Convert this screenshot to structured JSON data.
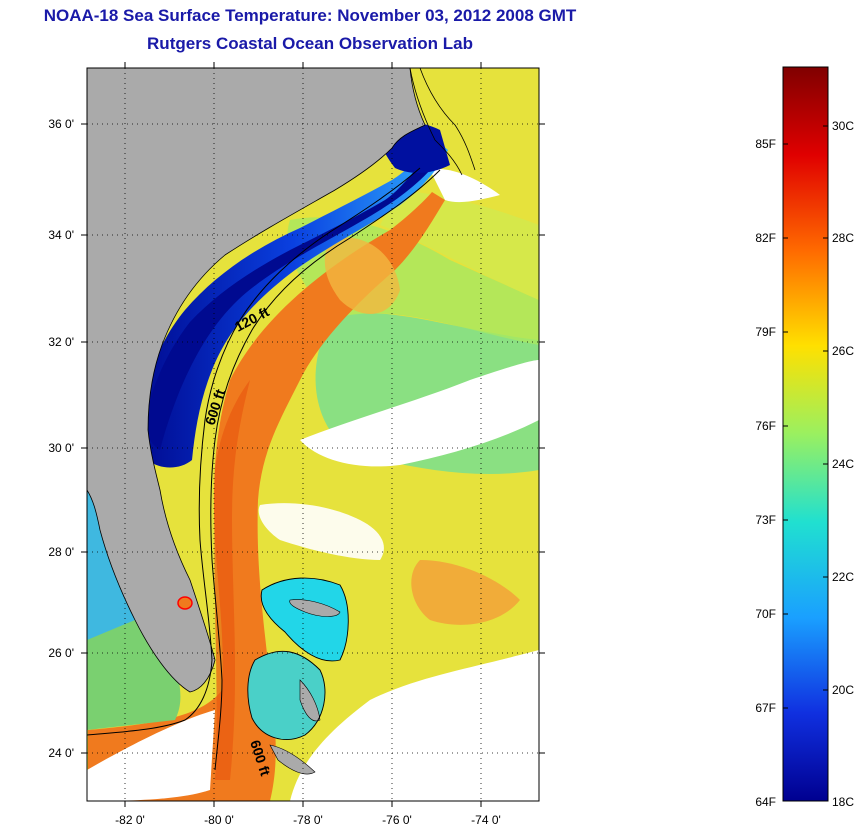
{
  "header": {
    "title": "NOAA-18 Sea Surface Temperature:  November 03, 2012 2008 GMT",
    "subtitle": "Rutgers Coastal Ocean Observation Lab"
  },
  "map": {
    "lat_labels": [
      "36 0'",
      "34 0'",
      "32 0'",
      "30 0'",
      "28 0'",
      "26 0'",
      "24 0'"
    ],
    "lon_labels": [
      "-82 0'",
      "-80 0'",
      "-78 0'",
      "-76 0'",
      "-74 0'"
    ],
    "contours": [
      "120 ft",
      "600 ft",
      "600 ft"
    ],
    "colors": {
      "land": "#aaaaaa",
      "cloud": "#ffffff",
      "gulf_stream": "#f07a1e",
      "offshore": "#e8e040",
      "cold_shelf": "#0a1e9a"
    }
  },
  "colorbar": {
    "f_labels": [
      "85F",
      "82F",
      "79F",
      "76F",
      "73F",
      "70F",
      "67F",
      "64F"
    ],
    "c_labels": [
      "30C",
      "28C",
      "26C",
      "24C",
      "22C",
      "20C",
      "18C"
    ],
    "scale_colors": [
      "#800000",
      "#ff0000",
      "#ff8000",
      "#ffff00",
      "#80ff80",
      "#00ffff",
      "#0080ff",
      "#0000ff",
      "#00008f"
    ]
  }
}
